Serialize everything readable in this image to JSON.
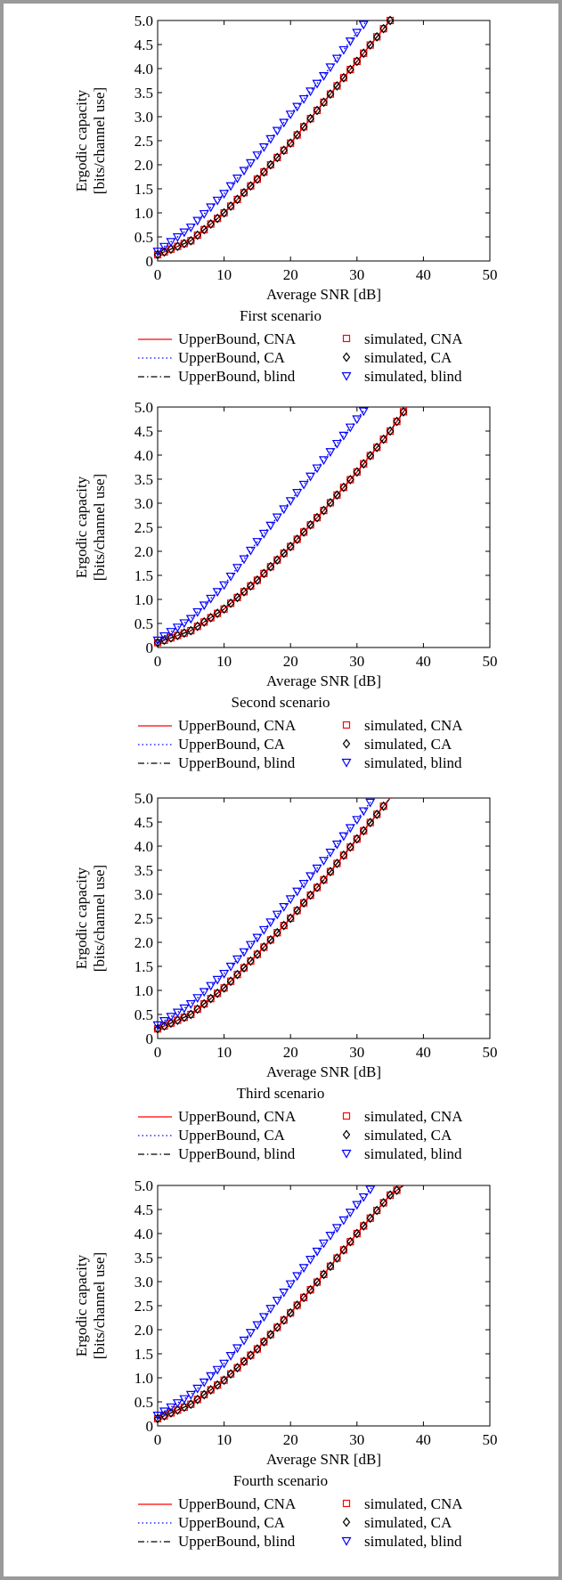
{
  "figure": {
    "y_label_line1": "Ergodic capacity",
    "y_label_line2": "[bits/channel use]",
    "x_label": "Average SNR [dB]",
    "legend": {
      "upper_cna": "UpperBound, CNA",
      "upper_ca": "UpperBound, CA",
      "upper_blind": "UpperBound, blind",
      "sim_cna": "simulated, CNA",
      "sim_ca": "simulated, CA",
      "sim_blind": "simulated, blind"
    },
    "colors": {
      "cna": "#ff0000",
      "ca": "#0000ff",
      "blind": "#000000",
      "sim_cna": "#ff0000",
      "sim_ca": "#000000",
      "sim_blind": "#0000ff"
    }
  },
  "chart_data": [
    {
      "type": "line",
      "caption": "First scenario",
      "xlabel": "Average SNR [dB]",
      "ylabel": "Ergodic capacity [bits/channel use]",
      "xlim": [
        0,
        50
      ],
      "ylim": [
        0,
        5.0
      ],
      "x_ticks": [
        "0",
        "10",
        "20",
        "30",
        "40",
        "50"
      ],
      "y_ticks": [
        "0",
        "0.5",
        "1.0",
        "1.5",
        "2.0",
        "2.5",
        "3.0",
        "3.5",
        "4.0",
        "4.5",
        "5.0"
      ],
      "series": [
        {
          "name": "UpperBound, CNA",
          "style": "solid",
          "x": [
            0,
            5,
            10,
            15,
            20,
            25,
            30,
            35
          ],
          "values": [
            0.13,
            0.42,
            1.0,
            1.7,
            2.45,
            3.3,
            4.15,
            5.0
          ]
        },
        {
          "name": "UpperBound, CA",
          "style": "dotted",
          "x": [
            0,
            5,
            10,
            15,
            20,
            25,
            30,
            31.5
          ],
          "values": [
            0.2,
            0.7,
            1.4,
            2.2,
            3.05,
            3.85,
            4.75,
            5.0
          ]
        },
        {
          "name": "UpperBound, blind",
          "style": "dashdot",
          "x": [
            0,
            5,
            10,
            15,
            20,
            25,
            30,
            35
          ],
          "values": [
            0.13,
            0.42,
            1.0,
            1.7,
            2.45,
            3.3,
            4.15,
            5.0
          ]
        },
        {
          "name": "simulated, CNA",
          "marker": "square",
          "x_range": [
            0,
            35
          ],
          "ref": 0
        },
        {
          "name": "simulated, CA",
          "marker": "diamond",
          "x_range": [
            0,
            35
          ],
          "ref": 0
        },
        {
          "name": "simulated, blind",
          "marker": "triangle",
          "x_range": [
            0,
            31
          ],
          "ref": 1
        }
      ]
    },
    {
      "type": "line",
      "caption": "Second scenario",
      "xlabel": "Average SNR [dB]",
      "ylabel": "Ergodic capacity [bits/channel use]",
      "xlim": [
        0,
        50
      ],
      "ylim": [
        0,
        5.0
      ],
      "x_ticks": [
        "0",
        "10",
        "20",
        "30",
        "40",
        "50"
      ],
      "y_ticks": [
        "0",
        "0.5",
        "1.0",
        "1.5",
        "2.0",
        "2.5",
        "3.0",
        "3.5",
        "4.0",
        "4.5",
        "5.0"
      ],
      "series": [
        {
          "name": "UpperBound, CNA",
          "style": "solid",
          "x": [
            0,
            5,
            10,
            15,
            20,
            25,
            30,
            35,
            37.5
          ],
          "values": [
            0.1,
            0.35,
            0.8,
            1.4,
            2.1,
            2.85,
            3.65,
            4.5,
            5.0
          ]
        },
        {
          "name": "UpperBound, CA",
          "style": "dotted",
          "x": [
            0,
            5,
            10,
            15,
            20,
            25,
            30,
            31.5
          ],
          "values": [
            0.15,
            0.6,
            1.3,
            2.2,
            3.05,
            3.9,
            4.75,
            5.0
          ]
        },
        {
          "name": "UpperBound, blind",
          "style": "dashdot",
          "x": [
            0,
            5,
            10,
            15,
            20,
            25,
            30,
            35,
            37.5
          ],
          "values": [
            0.1,
            0.35,
            0.8,
            1.4,
            2.1,
            2.85,
            3.65,
            4.5,
            5.0
          ]
        },
        {
          "name": "simulated, CNA",
          "marker": "square",
          "x_range": [
            0,
            37
          ],
          "ref": 0
        },
        {
          "name": "simulated, CA",
          "marker": "diamond",
          "x_range": [
            0,
            37
          ],
          "ref": 0
        },
        {
          "name": "simulated, blind",
          "marker": "triangle",
          "x_range": [
            0,
            31
          ],
          "ref": 1
        }
      ]
    },
    {
      "type": "line",
      "caption": "Third scenario",
      "xlabel": "Average SNR [dB]",
      "ylabel": "Ergodic capacity [bits/channel use]",
      "xlim": [
        0,
        50
      ],
      "ylim": [
        0,
        5.0
      ],
      "x_ticks": [
        "0",
        "10",
        "20",
        "30",
        "40",
        "50"
      ],
      "y_ticks": [
        "0",
        "0.5",
        "1.0",
        "1.5",
        "2.0",
        "2.5",
        "3.0",
        "3.5",
        "4.0",
        "4.5",
        "5.0"
      ],
      "series": [
        {
          "name": "UpperBound, CNA",
          "style": "solid",
          "x": [
            0,
            5,
            10,
            15,
            20,
            25,
            30,
            35
          ],
          "values": [
            0.2,
            0.5,
            1.05,
            1.75,
            2.5,
            3.3,
            4.15,
            5.0
          ]
        },
        {
          "name": "UpperBound, CA",
          "style": "dotted",
          "x": [
            0,
            5,
            10,
            15,
            20,
            25,
            30,
            32.5
          ],
          "values": [
            0.28,
            0.72,
            1.35,
            2.1,
            2.9,
            3.7,
            4.55,
            5.0
          ]
        },
        {
          "name": "UpperBound, blind",
          "style": "dashdot",
          "x": [
            0,
            5,
            10,
            15,
            20,
            25,
            30,
            35
          ],
          "values": [
            0.2,
            0.5,
            1.05,
            1.75,
            2.5,
            3.3,
            4.15,
            5.0
          ]
        },
        {
          "name": "simulated, CNA",
          "marker": "square",
          "x_range": [
            0,
            34
          ],
          "ref": 0
        },
        {
          "name": "simulated, CA",
          "marker": "diamond",
          "x_range": [
            0,
            34
          ],
          "ref": 0
        },
        {
          "name": "simulated, blind",
          "marker": "triangle",
          "x_range": [
            0,
            32
          ],
          "ref": 1
        }
      ]
    },
    {
      "type": "line",
      "caption": "Fourth scenario",
      "xlabel": "Average SNR [dB]",
      "ylabel": "Ergodic capacity [bits/channel use]",
      "xlim": [
        0,
        50
      ],
      "ylim": [
        0,
        5.0
      ],
      "x_ticks": [
        "0",
        "10",
        "20",
        "30",
        "40",
        "50"
      ],
      "y_ticks": [
        "0",
        "0.5",
        "1.0",
        "1.5",
        "2.0",
        "2.5",
        "3.0",
        "3.5",
        "4.0",
        "4.5",
        "5.0"
      ],
      "series": [
        {
          "name": "UpperBound, CNA",
          "style": "solid",
          "x": [
            0,
            5,
            10,
            15,
            20,
            25,
            30,
            35,
            37
          ],
          "values": [
            0.15,
            0.45,
            0.95,
            1.6,
            2.35,
            3.15,
            4.0,
            4.8,
            5.0
          ]
        },
        {
          "name": "UpperBound, CA",
          "style": "dotted",
          "x": [
            0,
            5,
            10,
            15,
            20,
            25,
            30,
            32.5
          ],
          "values": [
            0.22,
            0.65,
            1.3,
            2.1,
            2.95,
            3.8,
            4.6,
            5.0
          ]
        },
        {
          "name": "UpperBound, blind",
          "style": "dashdot",
          "x": [
            0,
            5,
            10,
            15,
            20,
            25,
            30,
            35,
            37
          ],
          "values": [
            0.15,
            0.45,
            0.95,
            1.6,
            2.35,
            3.15,
            4.0,
            4.8,
            5.0
          ]
        },
        {
          "name": "simulated, CNA",
          "marker": "square",
          "x_range": [
            0,
            36
          ],
          "ref": 0
        },
        {
          "name": "simulated, CA",
          "marker": "diamond",
          "x_range": [
            0,
            36
          ],
          "ref": 0
        },
        {
          "name": "simulated, blind",
          "marker": "triangle",
          "x_range": [
            0,
            32
          ],
          "ref": 1
        }
      ]
    }
  ]
}
